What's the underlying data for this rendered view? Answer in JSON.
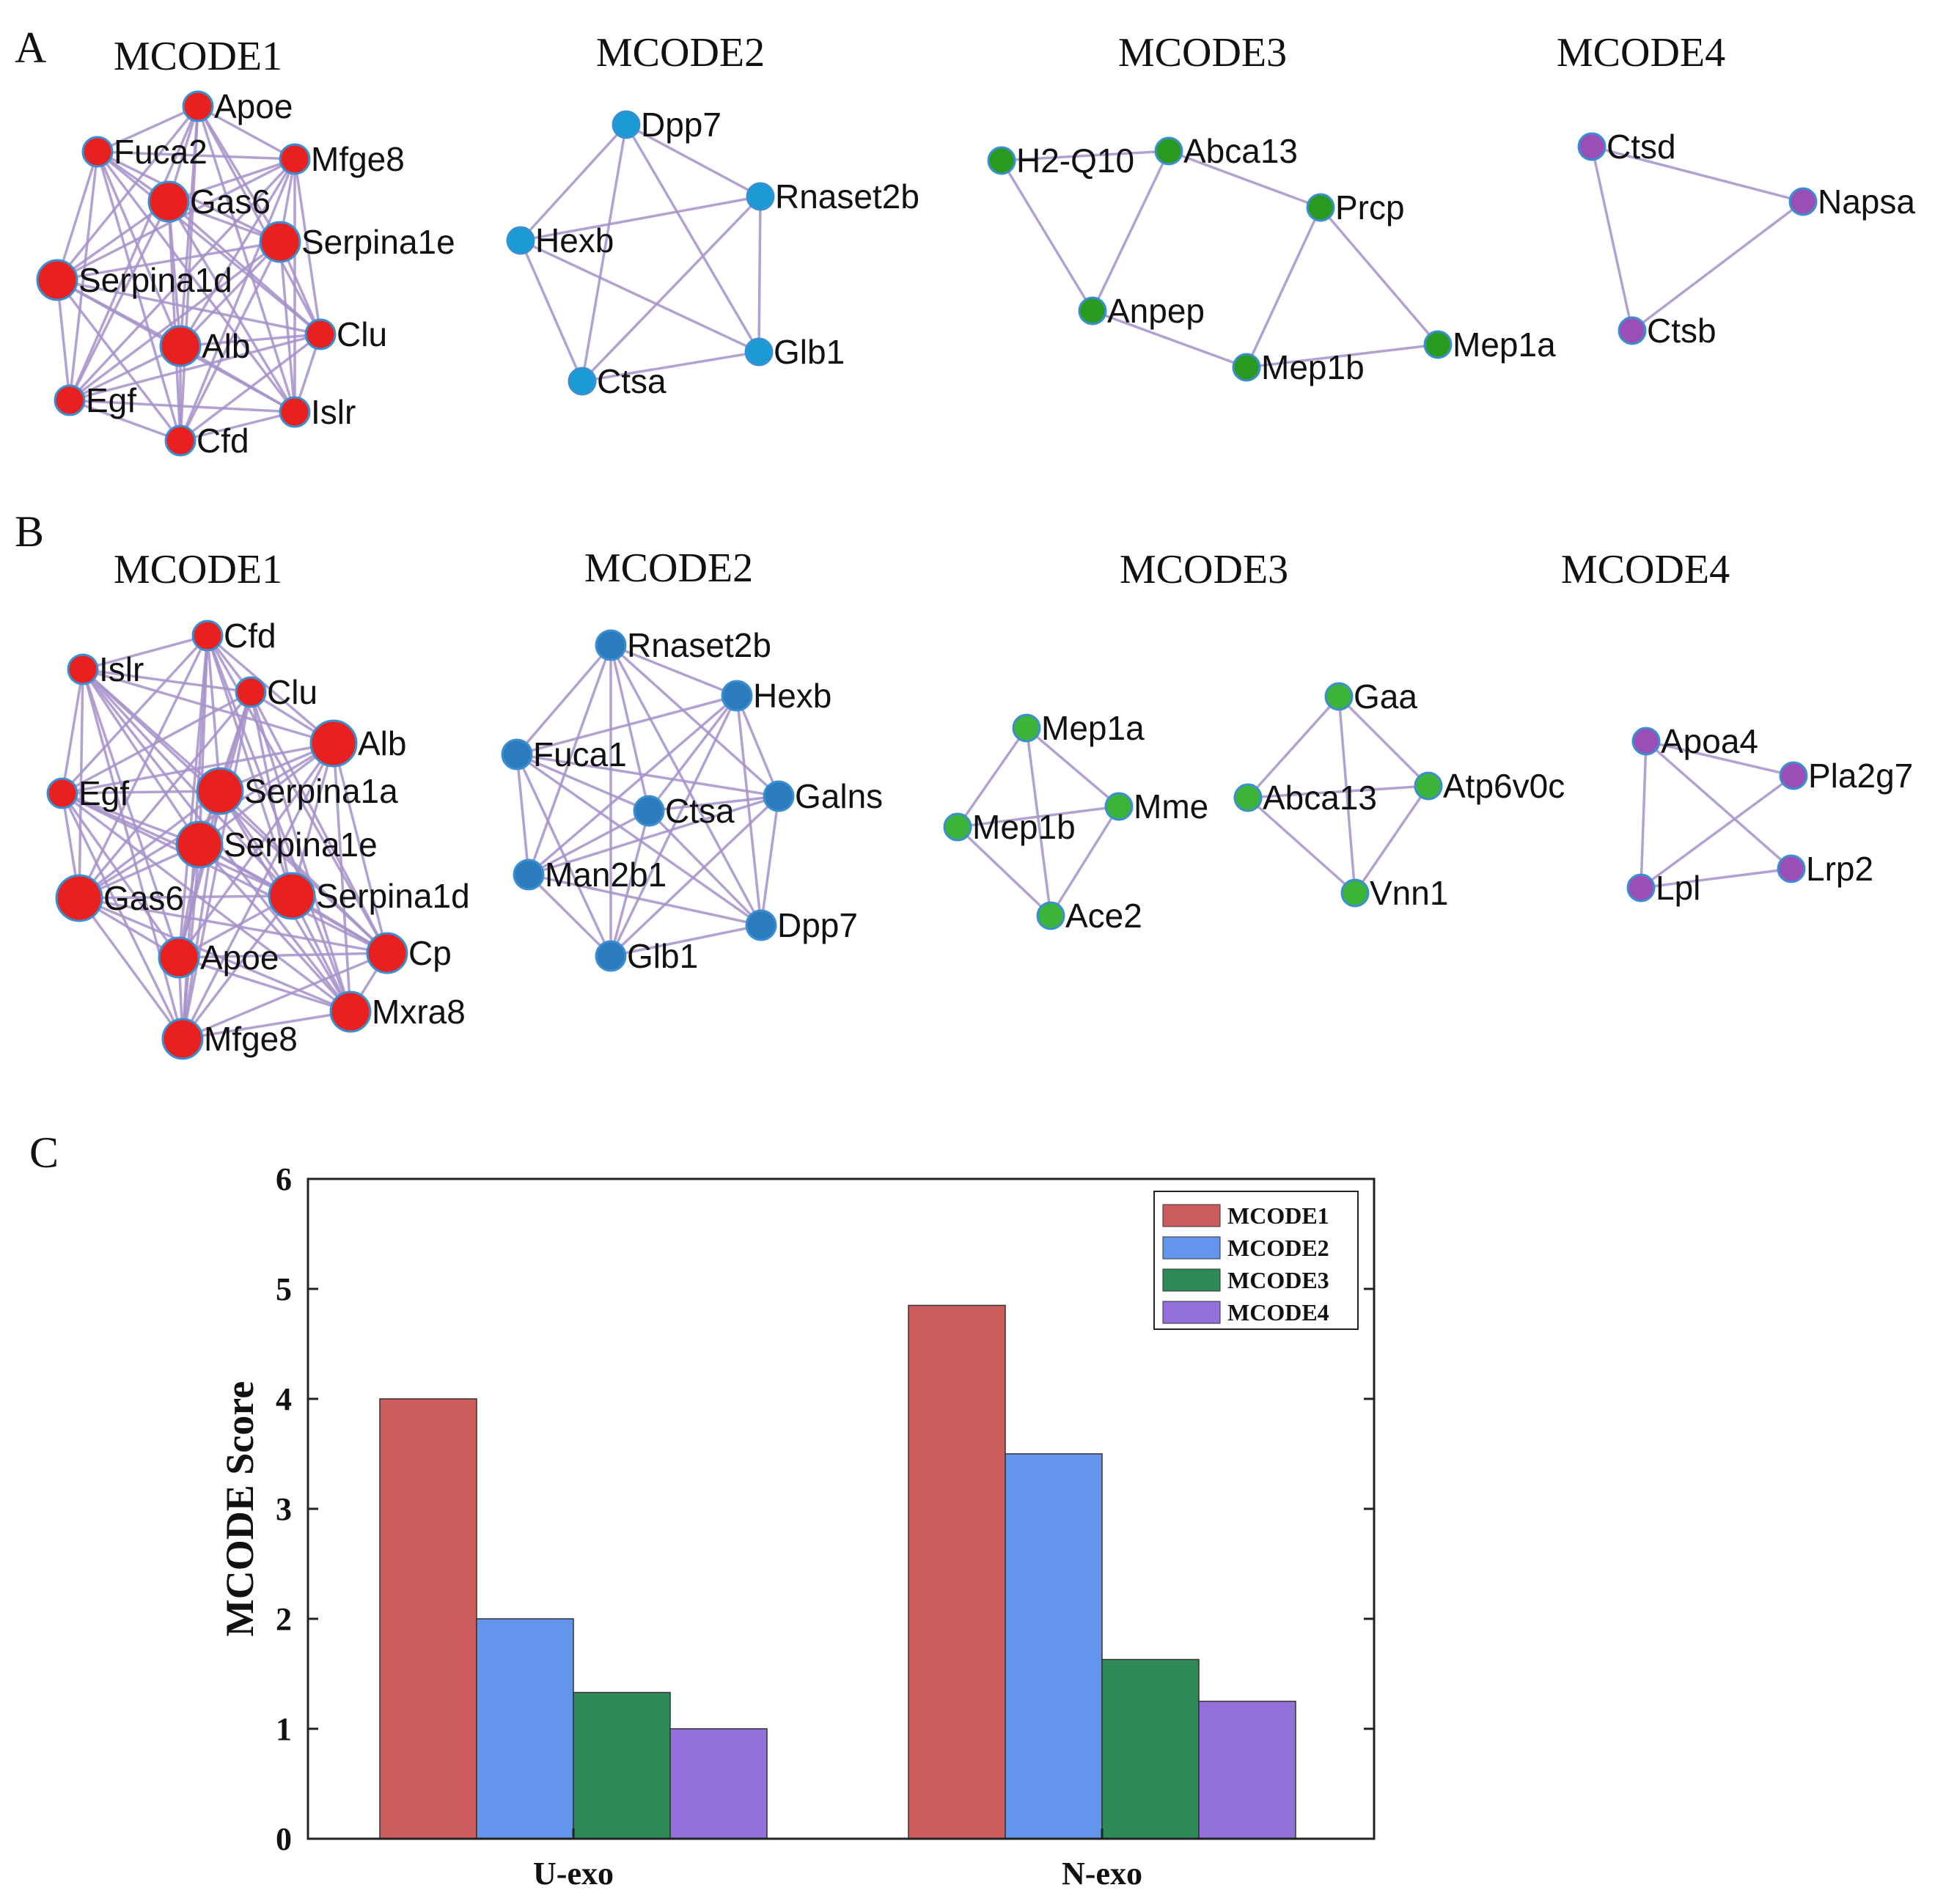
{
  "panels": {
    "A": {
      "letter": "A",
      "clusters": [
        {
          "title": "MCODE1",
          "color": "#e8201f",
          "nodes": [
            {
              "label": "Apoe",
              "size": "m"
            },
            {
              "label": "Fuca2",
              "size": "m"
            },
            {
              "label": "Mfge8",
              "size": "m"
            },
            {
              "label": "Gas6",
              "size": "l"
            },
            {
              "label": "Serpina1e",
              "size": "l"
            },
            {
              "label": "Serpina1d",
              "size": "l"
            },
            {
              "label": "Alb",
              "size": "l"
            },
            {
              "label": "Clu",
              "size": "m"
            },
            {
              "label": "Egf",
              "size": "m"
            },
            {
              "label": "Islr",
              "size": "m"
            },
            {
              "label": "Cfd",
              "size": "m"
            }
          ],
          "edges": "complete"
        },
        {
          "title": "MCODE2",
          "color": "#1a9bd6",
          "nodes": [
            {
              "label": "Dpp7",
              "size": "s"
            },
            {
              "label": "Rnaset2b",
              "size": "s"
            },
            {
              "label": "Hexb",
              "size": "s"
            },
            {
              "label": "Glb1",
              "size": "s"
            },
            {
              "label": "Ctsa",
              "size": "s"
            }
          ],
          "edges": "complete"
        },
        {
          "title": "MCODE3",
          "color": "#2a9a1e",
          "nodes": [
            {
              "label": "H2-Q10",
              "size": "s"
            },
            {
              "label": "Abca13",
              "size": "s"
            },
            {
              "label": "Prcp",
              "size": "s"
            },
            {
              "label": "Anpep",
              "size": "s"
            },
            {
              "label": "Mep1b",
              "size": "s"
            },
            {
              "label": "Mep1a",
              "size": "s"
            }
          ],
          "edges": [
            [
              "H2-Q10",
              "Abca13"
            ],
            [
              "H2-Q10",
              "Anpep"
            ],
            [
              "Abca13",
              "Anpep"
            ],
            [
              "Abca13",
              "Prcp"
            ],
            [
              "Prcp",
              "Mep1b"
            ],
            [
              "Prcp",
              "Mep1a"
            ],
            [
              "Anpep",
              "Mep1b"
            ],
            [
              "Mep1b",
              "Mep1a"
            ]
          ]
        },
        {
          "title": "MCODE4",
          "color": "#9b4eb5",
          "nodes": [
            {
              "label": "Ctsd",
              "size": "s"
            },
            {
              "label": "Napsa",
              "size": "s"
            },
            {
              "label": "Ctsb",
              "size": "s"
            }
          ],
          "edges": "complete"
        }
      ]
    },
    "B": {
      "letter": "B",
      "clusters": [
        {
          "title": "MCODE1",
          "color": "#e8201f",
          "nodes": [
            {
              "label": "Cfd",
              "size": "m"
            },
            {
              "label": "Islr",
              "size": "m"
            },
            {
              "label": "Clu",
              "size": "m"
            },
            {
              "label": "Alb",
              "size": "xl"
            },
            {
              "label": "Egf",
              "size": "m"
            },
            {
              "label": "Serpina1a",
              "size": "xl"
            },
            {
              "label": "Serpina1e",
              "size": "xl"
            },
            {
              "label": "Gas6",
              "size": "xl"
            },
            {
              "label": "Serpina1d",
              "size": "xl"
            },
            {
              "label": "Apoe",
              "size": "l"
            },
            {
              "label": "Cp",
              "size": "l"
            },
            {
              "label": "Mxra8",
              "size": "l"
            },
            {
              "label": "Mfge8",
              "size": "l"
            }
          ],
          "edges": "complete"
        },
        {
          "title": "MCODE2",
          "color": "#2c7bbd",
          "nodes": [
            {
              "label": "Rnaset2b",
              "size": "m"
            },
            {
              "label": "Hexb",
              "size": "m"
            },
            {
              "label": "Fuca1",
              "size": "m"
            },
            {
              "label": "Galns",
              "size": "m"
            },
            {
              "label": "Ctsa",
              "size": "m"
            },
            {
              "label": "Man2b1",
              "size": "m"
            },
            {
              "label": "Dpp7",
              "size": "m"
            },
            {
              "label": "Glb1",
              "size": "m"
            }
          ],
          "edges": "complete"
        },
        {
          "title": "MCODE3",
          "color": "#3db33a",
          "nodes": [
            {
              "label": "Mep1a",
              "size": "s"
            },
            {
              "label": "Mep1b",
              "size": "s"
            },
            {
              "label": "Mme",
              "size": "s"
            },
            {
              "label": "Ace2",
              "size": "s"
            },
            {
              "label": "Gaa",
              "size": "s"
            },
            {
              "label": "Abca13",
              "size": "s"
            },
            {
              "label": "Atp6v0c",
              "size": "s"
            },
            {
              "label": "Vnn1",
              "size": "s"
            }
          ],
          "edges": [
            [
              "Mep1a",
              "Mep1b"
            ],
            [
              "Mep1a",
              "Mme"
            ],
            [
              "Mep1a",
              "Ace2"
            ],
            [
              "Mep1b",
              "Mme"
            ],
            [
              "Mep1b",
              "Ace2"
            ],
            [
              "Mme",
              "Ace2"
            ],
            [
              "Gaa",
              "Abca13"
            ],
            [
              "Gaa",
              "Atp6v0c"
            ],
            [
              "Gaa",
              "Vnn1"
            ],
            [
              "Abca13",
              "Atp6v0c"
            ],
            [
              "Abca13",
              "Vnn1"
            ],
            [
              "Atp6v0c",
              "Vnn1"
            ]
          ]
        },
        {
          "title": "MCODE4",
          "color": "#9b4eb5",
          "nodes": [
            {
              "label": "Apoa4",
              "size": "s"
            },
            {
              "label": "Pla2g7",
              "size": "s"
            },
            {
              "label": "Lpl",
              "size": "s"
            },
            {
              "label": "Lrp2",
              "size": "s"
            }
          ],
          "edges": [
            [
              "Apoa4",
              "Pla2g7"
            ],
            [
              "Apoa4",
              "Lpl"
            ],
            [
              "Apoa4",
              "Lrp2"
            ],
            [
              "Pla2g7",
              "Lpl"
            ],
            [
              "Lpl",
              "Lrp2"
            ]
          ]
        }
      ]
    },
    "C": {
      "letter": "C"
    }
  },
  "chart_data": {
    "type": "bar",
    "categories": [
      "U-exo",
      "N-exo"
    ],
    "series": [
      {
        "name": "MCODE1",
        "values": [
          4.0,
          4.85
        ],
        "color": "#cd5c5c"
      },
      {
        "name": "MCODE2",
        "values": [
          2.0,
          3.5
        ],
        "color": "#6495ed"
      },
      {
        "name": "MCODE3",
        "values": [
          1.33,
          1.63
        ],
        "color": "#2e8b57"
      },
      {
        "name": "MCODE4",
        "values": [
          1.0,
          1.25
        ],
        "color": "#9370db"
      }
    ],
    "xlabel": "",
    "ylabel": "MCODE Score",
    "ylim": [
      0,
      6
    ],
    "yticks": [
      "0",
      "1",
      "2",
      "3",
      "4",
      "5",
      "6"
    ],
    "legend_position": "top-right",
    "grid": false
  }
}
